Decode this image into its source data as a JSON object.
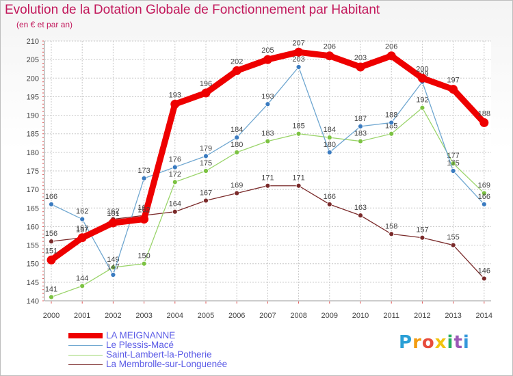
{
  "header": {
    "title": "Evolution de la Dotation Globale de Fonctionnement par Habitant",
    "subtitle": "(en € et par an)"
  },
  "logo": {
    "text": "Proxiti"
  },
  "chart_data": {
    "type": "line",
    "title": "Evolution de la Dotation Globale de Fonctionnement par Habitant",
    "subtitle": "(en € et par an)",
    "xlabel": "",
    "ylabel": "",
    "x": [
      "2000",
      "2001",
      "2002",
      "2003",
      "2004",
      "2005",
      "2006",
      "2007",
      "2008",
      "2009",
      "2010",
      "2011",
      "2012",
      "2013",
      "2014"
    ],
    "ylim": [
      140,
      210
    ],
    "yticks": [
      140,
      145,
      150,
      155,
      160,
      165,
      170,
      175,
      180,
      185,
      190,
      195,
      200,
      205,
      210
    ],
    "grid": true,
    "legend_position": "bottom-left",
    "series": [
      {
        "name": "LA MEIGNANNE",
        "color": "#ee0000",
        "emphasis": true,
        "values": [
          151,
          157,
          161,
          162,
          193,
          196,
          202,
          205,
          207,
          206,
          203,
          206,
          200,
          197,
          188
        ]
      },
      {
        "name": "Le Plessis-Macé",
        "color": "#6ea6d0",
        "marker": "#3a7bc0",
        "values": [
          166,
          162,
          147,
          173,
          176,
          179,
          184,
          193,
          203,
          180,
          187,
          188,
          199,
          175,
          166
        ]
      },
      {
        "name": "Saint-Lambert-la-Potherie",
        "color": "#9ad46a",
        "marker": "#7cc242",
        "values": [
          141,
          144,
          149,
          150,
          172,
          175,
          180,
          183,
          185,
          184,
          183,
          185,
          192,
          177,
          169
        ]
      },
      {
        "name": "La Membrolle-sur-Longuenée",
        "color": "#7a2a2a",
        "marker": "#7a2a2a",
        "values": [
          156,
          157,
          162,
          163,
          164,
          167,
          169,
          171,
          171,
          166,
          163,
          158,
          157,
          155,
          146
        ]
      }
    ]
  }
}
